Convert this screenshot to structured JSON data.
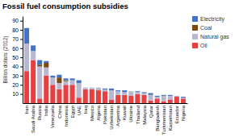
{
  "chart_data": {
    "type": "bar",
    "stacked": true,
    "title": "Fossil fuel consumption subsidies",
    "ylabel": "Billion dollars (2012)",
    "categories": [
      "Iran",
      "Saudi Arabia",
      "Russia",
      "India",
      "Venezuela",
      "China",
      "Indonesia",
      "Egypt",
      "UAE",
      "Iraq",
      "Mexico",
      "Algeria",
      "Pakistan",
      "Uzbekistan",
      "Argentina",
      "Kuwait",
      "Ukraine",
      "Thailand",
      "Malaysia",
      "Qatar",
      "Bangladesh",
      "Turkmenistan",
      "Kazakhstan",
      "Ecuador",
      "Nigeria"
    ],
    "series": [
      {
        "name": "Oil",
        "color": "#e84040",
        "values": [
          35,
          47,
          5,
          30,
          20,
          15,
          20,
          20,
          6,
          15,
          15,
          14,
          13,
          4,
          9,
          9,
          8,
          10,
          9,
          3,
          5,
          2,
          4,
          7,
          5
        ]
      },
      {
        "name": "Natural gas",
        "color": "#b8b8d0",
        "values": [
          30,
          10,
          35,
          9,
          8,
          7,
          4,
          5,
          16,
          2,
          2,
          3,
          2,
          10,
          4,
          3,
          5,
          2,
          2,
          6,
          2,
          6,
          4,
          1,
          1
        ]
      },
      {
        "name": "Coal",
        "color": "#7B4A10",
        "values": [
          0,
          0,
          2,
          5,
          0,
          6,
          1,
          0,
          0,
          0,
          0,
          0,
          0,
          0,
          0,
          0,
          0,
          0,
          0,
          0,
          0,
          0,
          0,
          0,
          0
        ]
      },
      {
        "name": "Electricity",
        "color": "#4472c4",
        "values": [
          17,
          6,
          5,
          2,
          2,
          3,
          2,
          2,
          3,
          0,
          0,
          0,
          1,
          2,
          1,
          2,
          0,
          1,
          1,
          2,
          1,
          1,
          1,
          0,
          1
        ]
      }
    ],
    "ylim": [
      0,
      95
    ],
    "yticks": [
      10,
      20,
      30,
      40,
      50,
      60,
      70,
      80,
      90
    ],
    "grid": false,
    "legend": "top-right"
  }
}
